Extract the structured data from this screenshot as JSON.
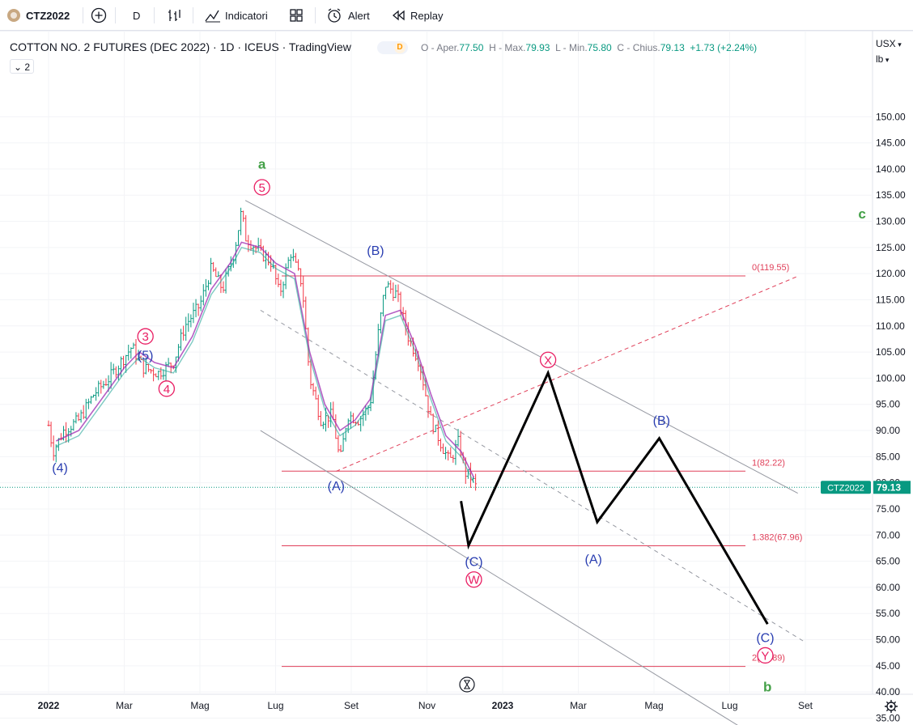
{
  "toolbar": {
    "symbol": "CTZ2022",
    "interval": "D",
    "indicators_label": "Indicatori",
    "alert_label": "Alert",
    "replay_label": "Replay",
    "icons": [
      "add-symbol-icon",
      "bar-style-icon",
      "indicators-icon",
      "layouts-icon",
      "alert-icon",
      "replay-icon"
    ]
  },
  "header": {
    "title": "COTTON NO. 2 FUTURES (DEC 2022) · 1D · ICEUS · TradingView",
    "market_status": "D",
    "indicator_count": "2"
  },
  "ohlc": {
    "o_label": "O - Aper.",
    "o": "77.50",
    "h_label": "H - Max.",
    "h": "79.93",
    "l_label": "L - Min.",
    "l": "75.80",
    "c_label": "C - Chius.",
    "c": "79.13",
    "change": "+1.73",
    "change_pct": "(+2.24%)"
  },
  "scale": {
    "currency": "USX",
    "unit": "lb"
  },
  "colors": {
    "bull": "#089981",
    "bear": "#f23645",
    "ma": "#9c27b0",
    "ma2": "#26a69a",
    "fib": "#e0405a",
    "wave_blue": "#2a3eb1",
    "wave_green": "#43a047",
    "wave_pink": "#e91e63",
    "badge": "#089981"
  },
  "chart_data": {
    "type": "line",
    "title": "COTTON NO. 2 FUTURES (DEC 2022)",
    "price_axis": {
      "ticks": [
        "35.00",
        "40.00",
        "45.00",
        "50.00",
        "55.00",
        "60.00",
        "65.00",
        "70.00",
        "75.00",
        "80.00",
        "85.00",
        "90.00",
        "95.00",
        "100.00",
        "105.00",
        "110.00",
        "115.00",
        "120.00",
        "125.00",
        "130.00",
        "135.00",
        "140.00",
        "145.00",
        "150.00"
      ],
      "range": [
        31,
        153
      ]
    },
    "time_axis": {
      "labels": [
        "2022",
        "Mar",
        "Mag",
        "Lug",
        "Set",
        "Nov",
        "2023",
        "Mar",
        "Mag",
        "Lug",
        "Set"
      ]
    },
    "last_price": {
      "symbol": "CTZ2022",
      "value": "79.13",
      "raw": 79.13
    },
    "price_series": [
      {
        "t": 0.0,
        "p": 91
      },
      {
        "t": 0.06,
        "p": 86
      },
      {
        "t": 0.2,
        "p": 90
      },
      {
        "t": 0.4,
        "p": 92
      },
      {
        "t": 0.6,
        "p": 97
      },
      {
        "t": 0.8,
        "p": 100
      },
      {
        "t": 1.0,
        "p": 104
      },
      {
        "t": 1.1,
        "p": 106
      },
      {
        "t": 1.25,
        "p": 102
      },
      {
        "t": 1.45,
        "p": 101
      },
      {
        "t": 1.65,
        "p": 103
      },
      {
        "t": 1.8,
        "p": 110
      },
      {
        "t": 2.0,
        "p": 114
      },
      {
        "t": 2.15,
        "p": 121
      },
      {
        "t": 2.3,
        "p": 117
      },
      {
        "t": 2.45,
        "p": 124
      },
      {
        "t": 2.55,
        "p": 132
      },
      {
        "t": 2.6,
        "p": 127
      },
      {
        "t": 2.8,
        "p": 124
      },
      {
        "t": 2.95,
        "p": 122
      },
      {
        "t": 3.05,
        "p": 116
      },
      {
        "t": 3.2,
        "p": 124
      },
      {
        "t": 3.35,
        "p": 118
      },
      {
        "t": 3.45,
        "p": 100
      },
      {
        "t": 3.6,
        "p": 92
      },
      {
        "t": 3.75,
        "p": 93
      },
      {
        "t": 3.85,
        "p": 84
      },
      {
        "t": 3.95,
        "p": 93
      },
      {
        "t": 4.1,
        "p": 92
      },
      {
        "t": 4.25,
        "p": 95
      },
      {
        "t": 4.35,
        "p": 108
      },
      {
        "t": 4.45,
        "p": 118
      },
      {
        "t": 4.6,
        "p": 116
      },
      {
        "t": 4.75,
        "p": 108
      },
      {
        "t": 4.9,
        "p": 103
      },
      {
        "t": 5.05,
        "p": 92
      },
      {
        "t": 5.2,
        "p": 87
      },
      {
        "t": 5.3,
        "p": 84
      },
      {
        "t": 5.42,
        "p": 88
      },
      {
        "t": 5.5,
        "p": 82
      },
      {
        "t": 5.58,
        "p": 81
      },
      {
        "t": 5.65,
        "p": 79.13
      }
    ],
    "ma_series": [
      {
        "t": 0.1,
        "p": 88
      },
      {
        "t": 0.4,
        "p": 90
      },
      {
        "t": 0.7,
        "p": 96
      },
      {
        "t": 1.0,
        "p": 102
      },
      {
        "t": 1.2,
        "p": 105
      },
      {
        "t": 1.4,
        "p": 103
      },
      {
        "t": 1.65,
        "p": 102
      },
      {
        "t": 1.9,
        "p": 108
      },
      {
        "t": 2.15,
        "p": 117
      },
      {
        "t": 2.4,
        "p": 122
      },
      {
        "t": 2.55,
        "p": 126
      },
      {
        "t": 2.8,
        "p": 125
      },
      {
        "t": 3.0,
        "p": 122
      },
      {
        "t": 3.25,
        "p": 120
      },
      {
        "t": 3.45,
        "p": 105
      },
      {
        "t": 3.65,
        "p": 95
      },
      {
        "t": 3.85,
        "p": 90
      },
      {
        "t": 4.05,
        "p": 92
      },
      {
        "t": 4.25,
        "p": 96
      },
      {
        "t": 4.45,
        "p": 112
      },
      {
        "t": 4.65,
        "p": 113
      },
      {
        "t": 4.85,
        "p": 106
      },
      {
        "t": 5.05,
        "p": 97
      },
      {
        "t": 5.25,
        "p": 89
      },
      {
        "t": 5.45,
        "p": 86
      },
      {
        "t": 5.62,
        "p": 81
      }
    ],
    "fib_levels": [
      {
        "label": "0(119.55)",
        "value": 119.55
      },
      {
        "label": "1(82.22)",
        "value": 82.22
      },
      {
        "label": "1.382(67.96)",
        "value": 67.96
      },
      {
        "label": "2(44.89)",
        "value": 44.89
      }
    ],
    "channel_lines": [
      {
        "t1": 2.6,
        "p1": 134,
        "t2": 9.9,
        "p2": 78,
        "style": "solid"
      },
      {
        "t1": 2.8,
        "p1": 113,
        "t2": 10.0,
        "p2": 49.5,
        "style": "dashed"
      },
      {
        "t1": 2.8,
        "p1": 90,
        "t2": 9.4,
        "p2": 31,
        "style": "solid"
      }
    ],
    "projection_line": {
      "t1": 3.8,
      "p1": 82.2,
      "t2": 9.9,
      "p2": 119.5
    },
    "forecast_path": [
      {
        "t": 5.45,
        "p": 76.5
      },
      {
        "t": 5.55,
        "p": 68
      },
      {
        "t": 6.6,
        "p": 101
      },
      {
        "t": 7.25,
        "p": 72.5
      },
      {
        "t": 8.07,
        "p": 88.5
      },
      {
        "t": 9.5,
        "p": 53
      }
    ],
    "wave_labels": [
      {
        "text": "a",
        "t": 2.82,
        "p": 141,
        "color": "green",
        "circled": false
      },
      {
        "text": "5",
        "t": 2.82,
        "p": 136.5,
        "color": "pink",
        "circled": true
      },
      {
        "text": "(B)",
        "t": 4.32,
        "p": 124.5,
        "color": "blue",
        "circled": false
      },
      {
        "text": "3",
        "t": 1.28,
        "p": 108,
        "color": "pink",
        "circled": true
      },
      {
        "text": "(5)",
        "t": 1.28,
        "p": 104.5,
        "color": "blue",
        "circled": false
      },
      {
        "text": "4",
        "t": 1.56,
        "p": 98,
        "color": "pink",
        "circled": true
      },
      {
        "text": "(4)",
        "t": 0.15,
        "p": 83,
        "color": "blue",
        "circled": false
      },
      {
        "text": "(A)",
        "t": 3.8,
        "p": 79.5,
        "color": "blue",
        "circled": false
      },
      {
        "text": "X",
        "t": 6.6,
        "p": 103.5,
        "color": "pink",
        "circled": true
      },
      {
        "text": "(B)",
        "t": 8.1,
        "p": 92,
        "color": "blue",
        "circled": false
      },
      {
        "text": "(C)",
        "t": 5.62,
        "p": 65,
        "color": "blue",
        "circled": false
      },
      {
        "text": "W",
        "t": 5.62,
        "p": 61.5,
        "color": "pink",
        "circled": true
      },
      {
        "text": "(A)",
        "t": 7.2,
        "p": 65.5,
        "color": "blue",
        "circled": false
      },
      {
        "text": "(C)",
        "t": 9.47,
        "p": 50.5,
        "color": "blue",
        "circled": false
      },
      {
        "text": "Y",
        "t": 9.47,
        "p": 47,
        "color": "pink",
        "circled": true
      },
      {
        "text": "c",
        "t": 10.75,
        "p": 131.5,
        "color": "green",
        "circled": false
      },
      {
        "text": "b",
        "t": 9.5,
        "p": 41,
        "color": "green",
        "circled": false
      }
    ]
  }
}
